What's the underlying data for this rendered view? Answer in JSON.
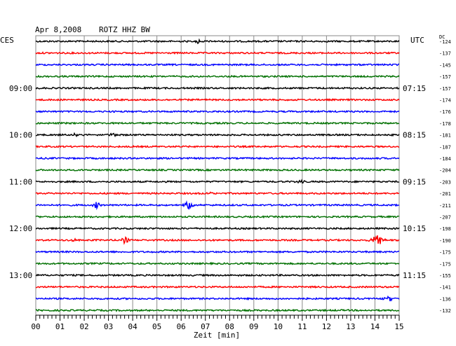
{
  "header": {
    "date": "Apr 8,2008",
    "station": "ROTZ HHZ BW",
    "left_zone": "CES",
    "right_zone": "UTC",
    "dc_label": "DC"
  },
  "colors": {
    "cycle": [
      "#000000",
      "#ff0000",
      "#0000ff",
      "#007000"
    ],
    "grid": "#8a8a8a"
  },
  "chart_data": {
    "type": "line",
    "plot_kind": "helicorder",
    "xlabel": "Zeit [min]",
    "xlim": [
      0,
      15
    ],
    "x_ticks": [
      "00",
      "01",
      "02",
      "03",
      "04",
      "05",
      "06",
      "07",
      "08",
      "09",
      "10",
      "11",
      "12",
      "13",
      "14",
      "15"
    ],
    "traces_per_hour": 4,
    "minutes_per_trace": 15,
    "grid": true,
    "left_hour_labels": [
      "09:00",
      "10:00",
      "11:00",
      "12:00",
      "13:00"
    ],
    "right_hour_labels": [
      "07:15",
      "08:15",
      "09:15",
      "10:15",
      "11:15"
    ],
    "dc_offsets": [
      "-124",
      "-137",
      "-145",
      "-157",
      "-157",
      "-174",
      "-176",
      "-178",
      "-181",
      "-187",
      "-184",
      "-204",
      "-203",
      "-201",
      "-211",
      "-207",
      "-198",
      "-190",
      "-175",
      "-175",
      "-155",
      "-141",
      "-136",
      "-132"
    ],
    "events": [
      {
        "trace": 0,
        "minute": 6.7,
        "amplitude": 3
      },
      {
        "trace": 8,
        "minute": 3.2,
        "amplitude": 3
      },
      {
        "trace": 8,
        "minute": 1.6,
        "amplitude": 2
      },
      {
        "trace": 12,
        "minute": 10.9,
        "amplitude": 3
      },
      {
        "trace": 13,
        "minute": 7.2,
        "amplitude": 2
      },
      {
        "trace": 14,
        "minute": 2.5,
        "amplitude": 5
      },
      {
        "trace": 14,
        "minute": 6.3,
        "amplitude": 7
      },
      {
        "trace": 17,
        "minute": 1.6,
        "amplitude": 3
      },
      {
        "trace": 17,
        "minute": 3.7,
        "amplitude": 6
      },
      {
        "trace": 17,
        "minute": 14.1,
        "amplitude": 18
      },
      {
        "trace": 22,
        "minute": 14.6,
        "amplitude": 4
      }
    ]
  }
}
